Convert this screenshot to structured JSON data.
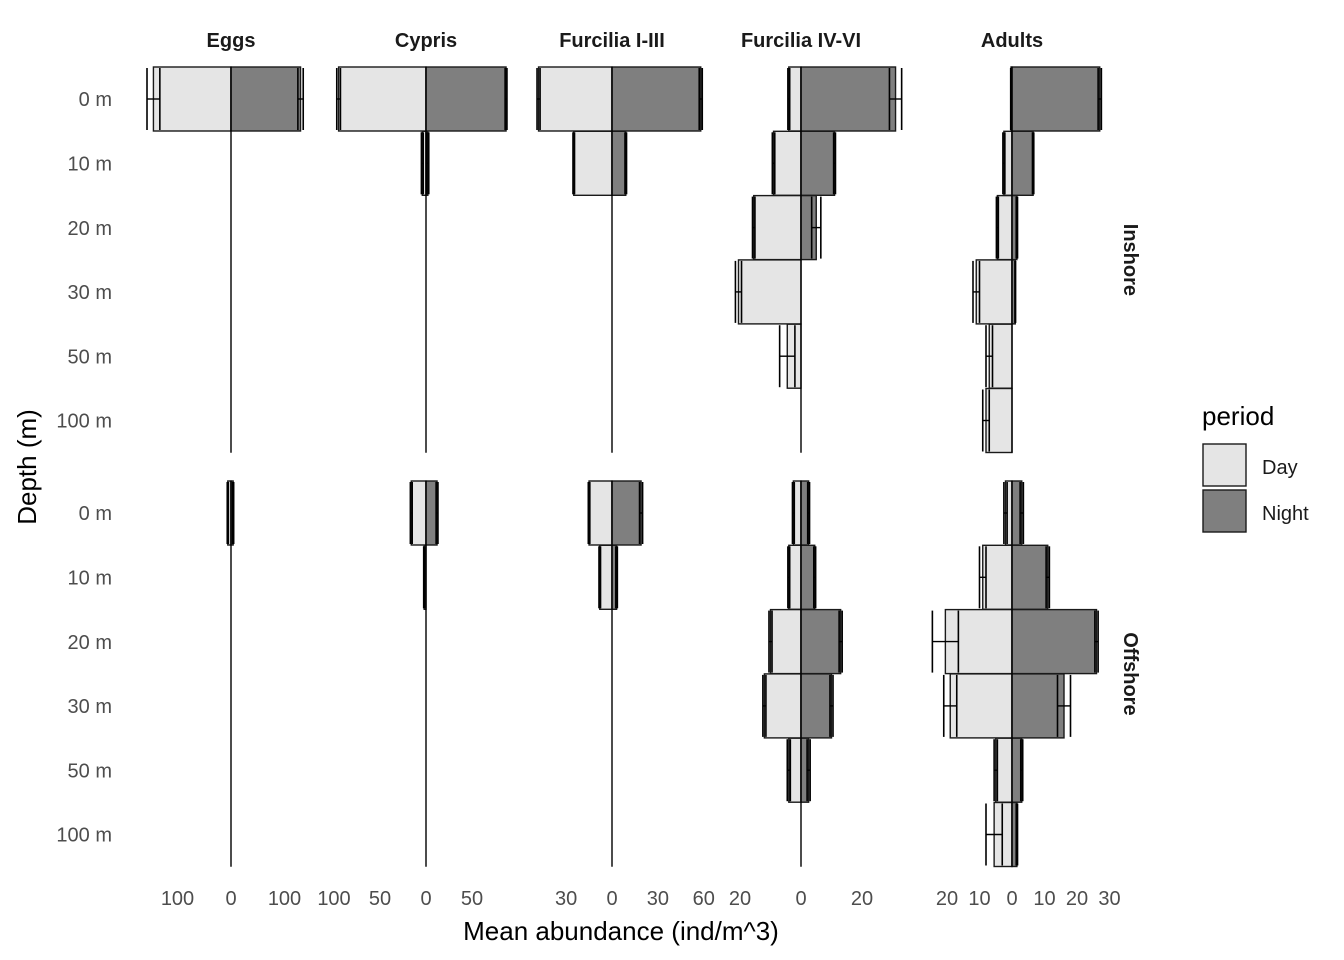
{
  "chart_data": {
    "type": "bar",
    "orientation": "horizontal-mirrored",
    "xlabel": "Mean abundance (ind/m^3)",
    "ylabel": "Depth (m)",
    "depths": [
      "0 m",
      "10 m",
      "20 m",
      "30 m",
      "50 m",
      "100 m"
    ],
    "columns": [
      "Eggs",
      "Cypris",
      "Furcilia I-III",
      "Furcilia IV-VI",
      "Adults"
    ],
    "rows": [
      "Inshore",
      "Offshore"
    ],
    "grid": false,
    "legend": {
      "title": "period",
      "position": "right",
      "entries": [
        {
          "name": "Day",
          "color": "#e5e5e5"
        },
        {
          "name": "Night",
          "color": "#7f7f7f"
        }
      ]
    },
    "x_ticks": {
      "Eggs": {
        "values": [
          -100,
          0,
          100
        ],
        "labels": [
          "100",
          "0",
          "100"
        ]
      },
      "Cypris": {
        "values": [
          -100,
          -50,
          0,
          50
        ],
        "labels": [
          "100",
          "50",
          "0",
          "50"
        ]
      },
      "Furcilia I-III": {
        "values": [
          -30,
          0,
          30,
          60
        ],
        "labels": [
          "30",
          "0",
          "30",
          "60"
        ]
      },
      "Furcilia IV-VI": {
        "values": [
          -20,
          0,
          20
        ],
        "labels": [
          "20",
          "0",
          "20"
        ]
      },
      "Adults": {
        "values": [
          -20,
          -10,
          0,
          10,
          20,
          30
        ],
        "labels": [
          "20",
          "10",
          "0",
          "10",
          "20",
          "30"
        ]
      }
    },
    "x_limits": {
      "Eggs": [
        -165,
        145
      ],
      "Cypris": [
        -100,
        90
      ],
      "Furcilia I-III": [
        -50,
        70
      ],
      "Furcilia IV-VI": [
        -22,
        30
      ],
      "Adults": [
        -25,
        35
      ]
    },
    "panels": [
      {
        "row": "Inshore",
        "column": "Eggs",
        "day": [
          145,
          null,
          null,
          null,
          null,
          null
        ],
        "day_se": [
          12,
          null,
          null,
          null,
          null,
          null
        ],
        "night": [
          130,
          null,
          null,
          null,
          null,
          null
        ],
        "night_se": [
          5,
          null,
          null,
          null,
          null,
          null
        ]
      },
      {
        "row": "Inshore",
        "column": "Cypris",
        "day": [
          95,
          4,
          null,
          null,
          null,
          null
        ],
        "day_se": [
          2,
          1,
          null,
          null,
          null,
          null
        ],
        "night": [
          87,
          2,
          null,
          null,
          null,
          null
        ],
        "night_se": [
          1,
          1,
          null,
          null,
          null,
          null
        ]
      },
      {
        "row": "Inshore",
        "column": "Furcilia I-III",
        "day": [
          48,
          25,
          null,
          null,
          null,
          null
        ],
        "day_se": [
          1,
          0.5,
          null,
          null,
          null,
          null
        ],
        "night": [
          58,
          9,
          null,
          null,
          null,
          null
        ],
        "night_se": [
          1,
          0.5,
          null,
          null,
          null,
          null
        ]
      },
      {
        "row": "Inshore",
        "column": "Furcilia IV-VI",
        "day": [
          4,
          9,
          15.5,
          20.5,
          4.5,
          null
        ],
        "day_se": [
          0.3,
          0.4,
          0.4,
          1,
          2.5,
          null
        ],
        "night": [
          31,
          11,
          5,
          0,
          null,
          null
        ],
        "night_se": [
          2,
          0.3,
          1.5,
          null,
          null,
          null
        ],
        "note": "day bars extend left of 0, night bars extend right of 0"
      },
      {
        "row": "Inshore",
        "column": "Adults",
        "day": [
          0.3,
          2.5,
          4.5,
          11,
          7,
          8
        ],
        "day_se": [
          0.1,
          0.3,
          0.3,
          1,
          1,
          1
        ],
        "night": [
          27,
          6.5,
          1.5,
          1,
          0,
          0
        ],
        "night_se": [
          0.5,
          0.2,
          0.2,
          0.1,
          null,
          null
        ]
      },
      {
        "row": "Offshore",
        "column": "Eggs",
        "day": [
          6,
          null,
          null,
          null,
          null,
          null
        ],
        "day_se": [
          1,
          null,
          null,
          null,
          null,
          null
        ],
        "night": [
          4,
          null,
          null,
          null,
          null,
          null
        ],
        "night_se": [
          1,
          null,
          null,
          null,
          null,
          null
        ]
      },
      {
        "row": "Offshore",
        "column": "Cypris",
        "day": [
          16,
          2,
          null,
          null,
          null,
          null
        ],
        "day_se": [
          1,
          0.5,
          null,
          null,
          null,
          null
        ],
        "night": [
          12,
          0,
          null,
          null,
          null,
          null
        ],
        "night_se": [
          1,
          null,
          null,
          null,
          null,
          null
        ]
      },
      {
        "row": "Offshore",
        "column": "Furcilia I-III",
        "day": [
          15,
          8,
          null,
          null,
          null,
          null
        ],
        "day_se": [
          0.5,
          0.5,
          null,
          null,
          null,
          null
        ],
        "night": [
          19,
          3,
          null,
          null,
          null,
          null
        ],
        "night_se": [
          1,
          0.5,
          null,
          null,
          null,
          null
        ]
      },
      {
        "row": "Offshore",
        "column": "Furcilia IV-VI",
        "day": [
          2.5,
          4,
          10,
          12,
          4,
          null
        ],
        "day_se": [
          0.3,
          0.3,
          0.5,
          0.5,
          0.5,
          null
        ],
        "night": [
          2.5,
          4.5,
          13,
          10,
          2.5,
          null
        ],
        "night_se": [
          0.3,
          0.3,
          0.5,
          0.5,
          0.5,
          null
        ]
      },
      {
        "row": "Offshore",
        "column": "Adults",
        "day": [
          2,
          9,
          20.5,
          19,
          5,
          5.5
        ],
        "day_se": [
          0.5,
          1,
          4,
          2,
          0.5,
          2.5
        ],
        "night": [
          3,
          11,
          26,
          16,
          3,
          1.5
        ],
        "night_se": [
          0.5,
          0.5,
          0.5,
          2,
          0.3,
          0.2
        ]
      }
    ]
  }
}
